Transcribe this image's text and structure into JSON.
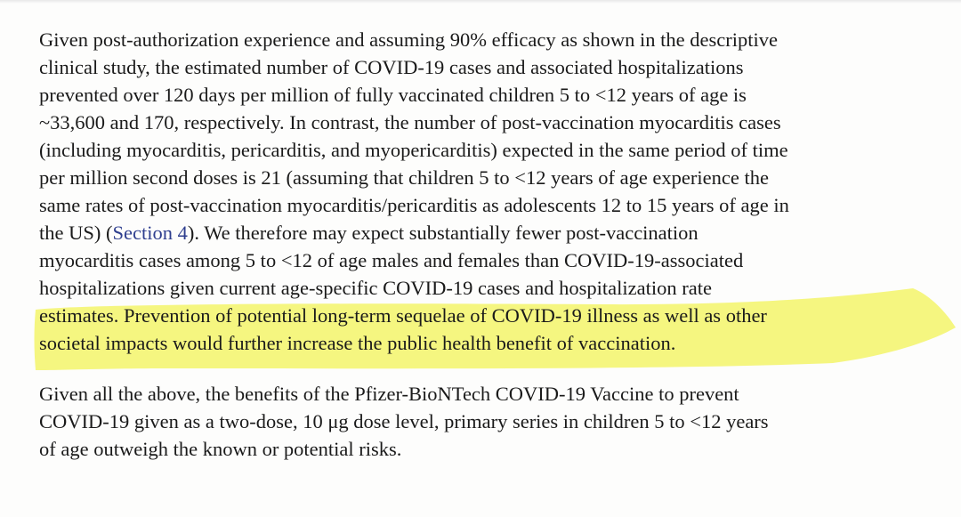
{
  "highlight_color": "#f3f56a",
  "link_color": "#2f3f8f",
  "paragraph1": {
    "l1": "Given post-authorization experience and assuming 90% efficacy as shown in the descriptive",
    "l2": "clinical study, the estimated number of COVID-19 cases and associated hospitalizations",
    "l3": "prevented over 120 days per million of fully vaccinated children 5 to <12 years of age is",
    "l4": "~33,600 and 170, respectively. In contrast, the number of post-vaccination myocarditis cases",
    "l5": "(including myocarditis, pericarditis, and myopericarditis) expected in the same period of time",
    "l6": "per million second doses is 21 (assuming that children 5 to <12 years of age experience the",
    "l7": "same rates of post-vaccination myocarditis/pericarditis as adolescents 12 to 15 years of age in",
    "l8_pre": "the US) (",
    "l8_link": "Section 4",
    "l8_post": "). We therefore may expect substantially fewer post-vaccination",
    "l9": "myocarditis cases among 5 to <12 of age males and females than COVID-19-associated",
    "l10": "hospitalizations given current age-specific COVID-19 cases and hospitalization rate",
    "l11": "estimates. Prevention of potential long-term sequelae of COVID-19 illness as well as other",
    "l12": "societal impacts would further increase the public health benefit of vaccination."
  },
  "paragraph2": {
    "l1": "Given all the above, the benefits of the Pfizer-BioNTech COVID-19 Vaccine to prevent",
    "l2": "COVID-19 given as a two-dose, 10 μg dose level, primary series in children 5 to <12 years",
    "l3": "of age outweigh the known or potential risks."
  }
}
